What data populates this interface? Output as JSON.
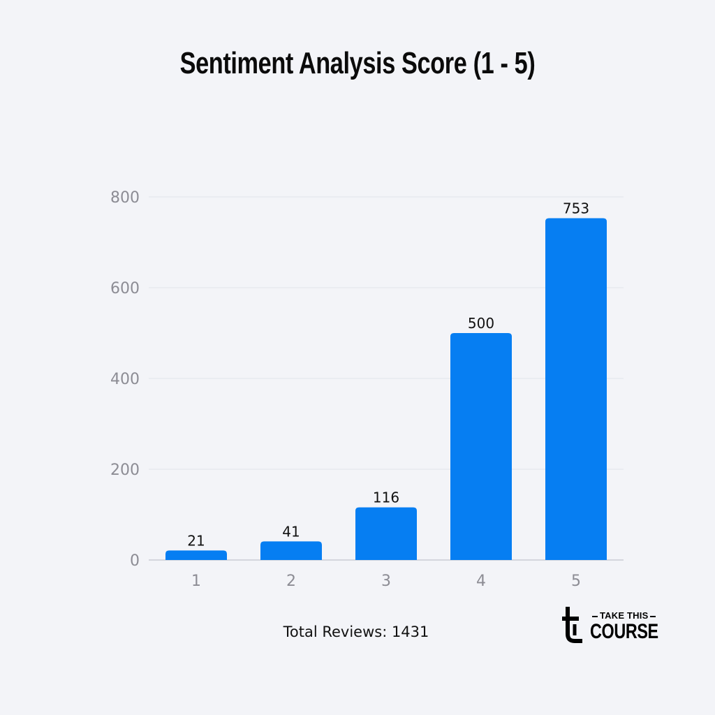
{
  "chart_data": {
    "type": "bar",
    "title": "Sentiment Analysis Score (1 - 5)",
    "categories": [
      "1",
      "2",
      "3",
      "4",
      "5"
    ],
    "values": [
      21,
      41,
      116,
      500,
      753
    ],
    "data_labels": [
      "21",
      "41",
      "116",
      "500",
      "753"
    ],
    "y_ticks": [
      0,
      200,
      400,
      600,
      800
    ],
    "ylim": [
      0,
      800
    ],
    "grid": true,
    "bar_color": "#067ef2"
  },
  "footer": {
    "total_label": "Total Reviews: 1431"
  },
  "logo": {
    "top_text": "TAKE THIS",
    "bottom_text": "COURSE",
    "icon": "take-this-course-logo-icon"
  }
}
